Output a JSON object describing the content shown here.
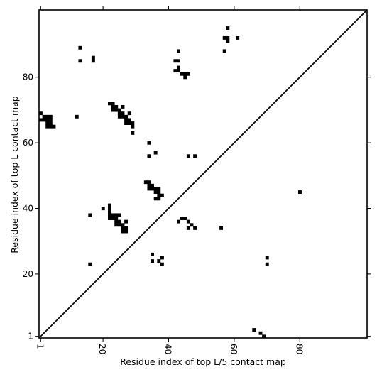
{
  "chart_data": {
    "type": "heatmap",
    "title": "",
    "xlabel": "Residue index of top L/5 contact map",
    "ylabel": "Residue index of top L contact map",
    "xlim": [
      1,
      100
    ],
    "ylim": [
      1,
      100
    ],
    "xticks": [
      1,
      20,
      40,
      60,
      80
    ],
    "yticks": [
      1,
      20,
      40,
      60,
      80
    ],
    "xtick_labels": [
      "1",
      "20",
      "40",
      "60",
      "80"
    ],
    "ytick_labels": [
      "1",
      "20",
      "40",
      "60",
      "80"
    ],
    "diagonal": true,
    "cell_color": "#000000",
    "grid": false,
    "points": [
      [
        1,
        69
      ],
      [
        2,
        68
      ],
      [
        3,
        68
      ],
      [
        4,
        68
      ],
      [
        1,
        67
      ],
      [
        2,
        67
      ],
      [
        3,
        67
      ],
      [
        4,
        67
      ],
      [
        3,
        66
      ],
      [
        4,
        66
      ],
      [
        3,
        65
      ],
      [
        4,
        65
      ],
      [
        5,
        65
      ],
      [
        12,
        68
      ],
      [
        13,
        89
      ],
      [
        13,
        85
      ],
      [
        17,
        86
      ],
      [
        17,
        85
      ],
      [
        22,
        72
      ],
      [
        23,
        72
      ],
      [
        23,
        71
      ],
      [
        24,
        71
      ],
      [
        23,
        70
      ],
      [
        24,
        70
      ],
      [
        25,
        70
      ],
      [
        25,
        69
      ],
      [
        26,
        69
      ],
      [
        26,
        71
      ],
      [
        25,
        68
      ],
      [
        26,
        68
      ],
      [
        27,
        68
      ],
      [
        27,
        67
      ],
      [
        28,
        67
      ],
      [
        27,
        66
      ],
      [
        28,
        66
      ],
      [
        29,
        66
      ],
      [
        29,
        65
      ],
      [
        28,
        69
      ],
      [
        29,
        63
      ],
      [
        34,
        60
      ],
      [
        34,
        56
      ],
      [
        36,
        57
      ],
      [
        33,
        48
      ],
      [
        34,
        48
      ],
      [
        34,
        47
      ],
      [
        35,
        47
      ],
      [
        34,
        46
      ],
      [
        35,
        46
      ],
      [
        36,
        46
      ],
      [
        37,
        46
      ],
      [
        36,
        45
      ],
      [
        37,
        45
      ],
      [
        37,
        44
      ],
      [
        38,
        44
      ],
      [
        36,
        43
      ],
      [
        37,
        43
      ],
      [
        20,
        40
      ],
      [
        16,
        38
      ],
      [
        22,
        41
      ],
      [
        22,
        40
      ],
      [
        22,
        39
      ],
      [
        22,
        38
      ],
      [
        23,
        38
      ],
      [
        24,
        38
      ],
      [
        25,
        38
      ],
      [
        22,
        37
      ],
      [
        23,
        37
      ],
      [
        24,
        37
      ],
      [
        24,
        36
      ],
      [
        25,
        36
      ],
      [
        24,
        35
      ],
      [
        25,
        35
      ],
      [
        26,
        35
      ],
      [
        26,
        34
      ],
      [
        27,
        34
      ],
      [
        26,
        33
      ],
      [
        27,
        33
      ],
      [
        27,
        36
      ],
      [
        16,
        23
      ],
      [
        35,
        26
      ],
      [
        35,
        24
      ],
      [
        37,
        24
      ],
      [
        38,
        25
      ],
      [
        38,
        23
      ],
      [
        42,
        85
      ],
      [
        43,
        85
      ],
      [
        43,
        88
      ],
      [
        42,
        82
      ],
      [
        43,
        82
      ],
      [
        43,
        83
      ],
      [
        44,
        81
      ],
      [
        45,
        81
      ],
      [
        46,
        81
      ],
      [
        45,
        80
      ],
      [
        44,
        37
      ],
      [
        45,
        37
      ],
      [
        43,
        36
      ],
      [
        46,
        36
      ],
      [
        47,
        35
      ],
      [
        46,
        34
      ],
      [
        48,
        34
      ],
      [
        46,
        56
      ],
      [
        48,
        56
      ],
      [
        57,
        92
      ],
      [
        58,
        92
      ],
      [
        58,
        91
      ],
      [
        58,
        95
      ],
      [
        61,
        92
      ],
      [
        57,
        88
      ],
      [
        56,
        34
      ],
      [
        80,
        45
      ],
      [
        70,
        25
      ],
      [
        70,
        23
      ],
      [
        66,
        3
      ],
      [
        68,
        2
      ],
      [
        69,
        1
      ]
    ]
  }
}
